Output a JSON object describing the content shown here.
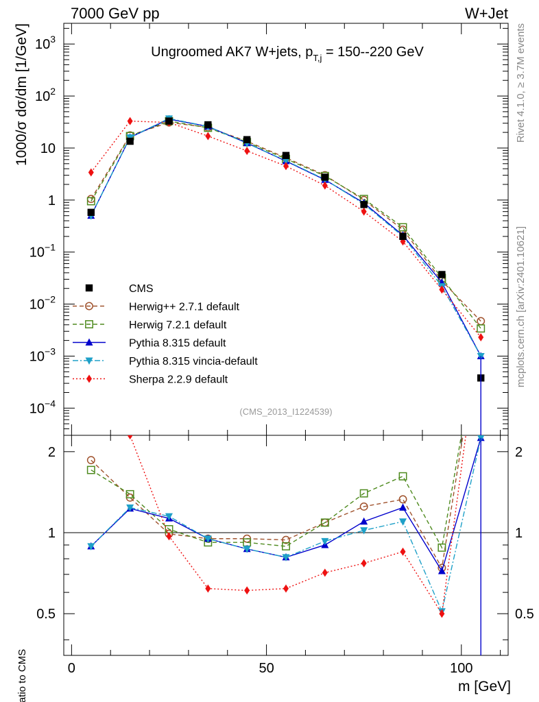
{
  "header": {
    "left": "7000 GeV pp",
    "right": "W+Jet"
  },
  "side_labels": {
    "rivet": "Rivet 4.1.0, ≥ 3.7M events",
    "mcplots": "mcplots.cern.ch [arXiv:2401.10621]"
  },
  "chart_data": [
    {
      "type": "line",
      "panel": "main",
      "title_parts": {
        "main": "Ungroomed AK7 W+jets, p",
        "sub": "T,j",
        "tail": " = 150--220 GeV"
      },
      "watermark": "(CMS_2013_I1224539)",
      "ylabel": "1000/σ  dσ/dm [1/GeV]",
      "xlabel": "m [GeV]",
      "yscale": "log",
      "ylim": [
        3e-05,
        2500
      ],
      "xlim": [
        -2,
        112
      ],
      "yticks": [
        {
          "v": 1000,
          "base": "10",
          "exp": "3"
        },
        {
          "v": 100,
          "base": "10",
          "exp": "2"
        },
        {
          "v": 10,
          "base": "10",
          "exp": ""
        },
        {
          "v": 1,
          "base": "1",
          "exp": ""
        },
        {
          "v": 0.1,
          "base": "10",
          "exp": "−1"
        },
        {
          "v": 0.01,
          "base": "10",
          "exp": "−2"
        },
        {
          "v": 0.001,
          "base": "10",
          "exp": "−3"
        },
        {
          "v": 0.0001,
          "base": "10",
          "exp": "−4"
        }
      ],
      "x": [
        5,
        15,
        25,
        35,
        45,
        55,
        65,
        75,
        85,
        95,
        105
      ],
      "series": [
        {
          "name": "CMS",
          "color": "#000000",
          "marker": "square",
          "dash": "",
          "values": [
            0.58,
            13.5,
            33,
            28,
            14.5,
            7.2,
            2.75,
            0.82,
            0.2,
            0.037,
            0.00038
          ]
        },
        {
          "name": "Herwig++ 2.7.1 default",
          "color": "#a0522d",
          "marker": "circle-open",
          "dash": "6,4",
          "values": [
            1.05,
            17.5,
            31,
            25,
            13.5,
            6.5,
            3.0,
            1.0,
            0.27,
            0.028,
            0.0047
          ]
        },
        {
          "name": "Herwig 7.2.1 default",
          "color": "#4e8a1e",
          "marker": "square-open",
          "dash": "6,4",
          "values": [
            0.95,
            17,
            33,
            24.5,
            13,
            6.2,
            2.9,
            1.05,
            0.3,
            0.032,
            0.0034
          ]
        },
        {
          "name": "Pythia 8.315 default",
          "color": "#0000cc",
          "marker": "triangle-up",
          "dash": "",
          "values": [
            0.5,
            16,
            36,
            26,
            12.5,
            5.6,
            2.45,
            0.88,
            0.21,
            0.026,
            0.001
          ]
        },
        {
          "name": "Pythia 8.315 vincia-default",
          "color": "#1ea0c8",
          "marker": "triangle-down",
          "dash": "8,3,2,3",
          "values": [
            0.5,
            16,
            37,
            26,
            12.3,
            5.7,
            2.5,
            0.84,
            0.2,
            0.022,
            0.001
          ]
        },
        {
          "name": "Sherpa 2.2.9 default",
          "color": "#ee1111",
          "marker": "diamond",
          "dash": "2,3",
          "values": [
            3.4,
            33,
            31,
            17,
            8.8,
            4.5,
            1.9,
            0.6,
            0.16,
            0.019,
            0.0023
          ]
        }
      ]
    },
    {
      "type": "line",
      "panel": "ratio",
      "ylabel": "Ratio to CMS",
      "xlabel": "m [GeV]",
      "yscale": "log",
      "ylim": [
        0.35,
        2.3
      ],
      "xlim": [
        -2,
        112
      ],
      "yticks": [
        {
          "v": 0.5,
          "label": "0.5"
        },
        {
          "v": 1,
          "label": "1"
        },
        {
          "v": 2,
          "label": "2"
        }
      ],
      "xticks": [
        {
          "v": 0,
          "label": "0"
        },
        {
          "v": 50,
          "label": "50"
        },
        {
          "v": 100,
          "label": "100"
        }
      ],
      "x": [
        5,
        15,
        25,
        35,
        45,
        55,
        65,
        75,
        85,
        95,
        105
      ],
      "series": [
        {
          "name": "Herwig++ 2.7.1 default",
          "values": [
            1.86,
            1.35,
            0.99,
            0.95,
            0.95,
            0.94,
            1.09,
            1.25,
            1.33,
            0.74,
            6
          ]
        },
        {
          "name": "Herwig 7.2.1 default",
          "values": [
            1.71,
            1.39,
            1.03,
            0.92,
            0.92,
            0.89,
            1.09,
            1.4,
            1.62,
            0.88,
            6
          ]
        },
        {
          "name": "Pythia 8.315 default",
          "values": [
            0.89,
            1.23,
            1.13,
            0.95,
            0.87,
            0.81,
            0.9,
            1.1,
            1.24,
            0.72,
            2.25
          ]
        },
        {
          "name": "Pythia 8.315 vincia-default",
          "values": [
            0.89,
            1.24,
            1.15,
            0.95,
            0.87,
            0.81,
            0.93,
            1.02,
            1.1,
            0.51,
            2.25
          ]
        },
        {
          "name": "Sherpa 2.2.9 default",
          "values": [
            7,
            2.3,
            0.97,
            0.62,
            0.61,
            0.62,
            0.71,
            0.77,
            0.85,
            0.5,
            6
          ]
        }
      ]
    }
  ]
}
